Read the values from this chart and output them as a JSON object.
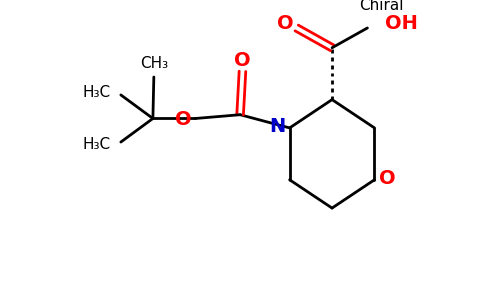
{
  "background_color": "#ffffff",
  "bond_color": "#000000",
  "N_color": "#0000cc",
  "O_color": "#ff0000",
  "figsize": [
    4.84,
    3.0
  ],
  "dpi": 100,
  "xlim": [
    0,
    9.68
  ],
  "ylim": [
    0,
    6.0
  ]
}
